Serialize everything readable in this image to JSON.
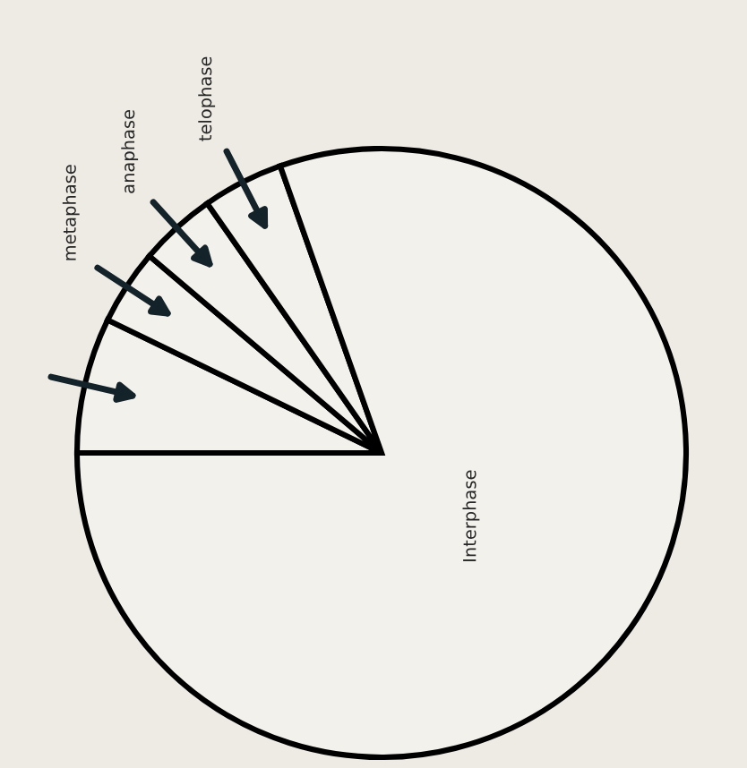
{
  "chart_data": {
    "type": "pie",
    "categories": [
      null,
      "metaphase",
      "anaphase",
      "telophase",
      "Interphase"
    ],
    "values": [
      7.2,
      4.0,
      4.1,
      4.3,
      80.4
    ],
    "colors": [
      "#f3f1ec",
      "#f3f1ec",
      "#f3f1ec",
      "#f3f1ec",
      "#f3f1ec"
    ]
  }
}
